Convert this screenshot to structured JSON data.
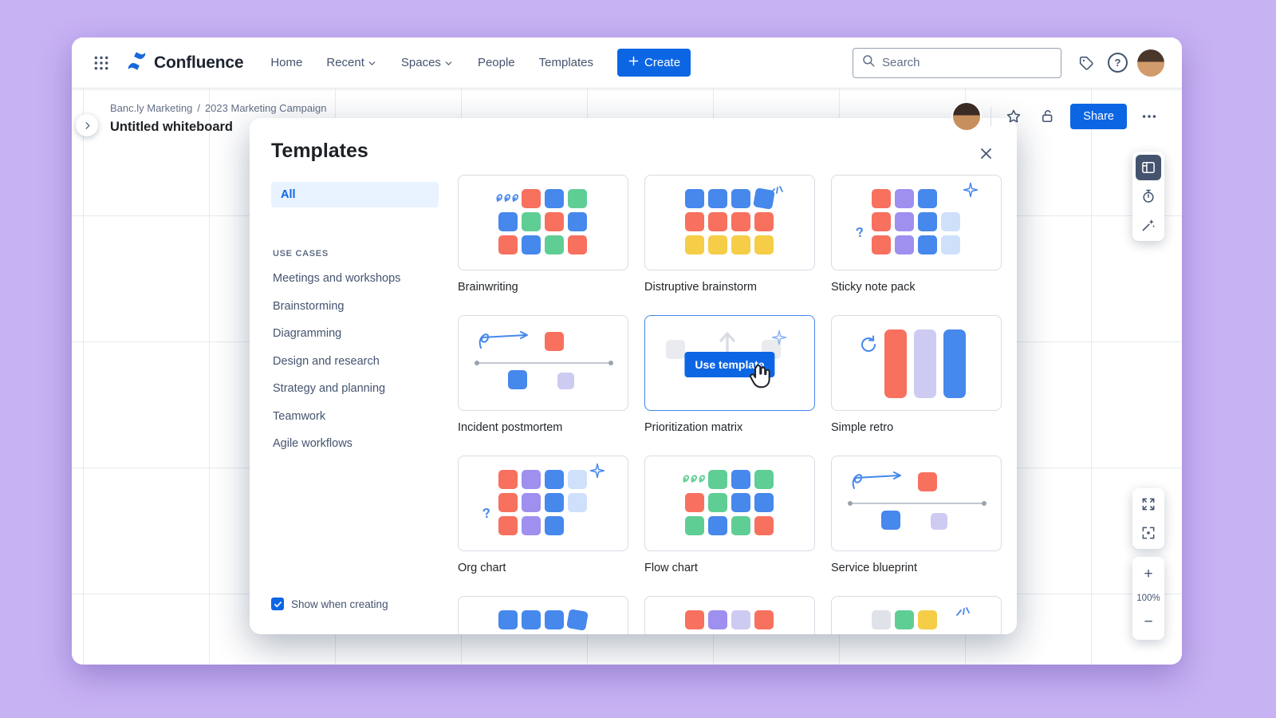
{
  "palette": {
    "coral": "#F8705E",
    "blue": "#4688EC",
    "green": "#5FCE94",
    "yellow": "#F5CD47",
    "purple": "#9F8FEF",
    "lightblue": "#CFE0FB",
    "lavender": "#CDCBF1",
    "gray": "#DFE2E8",
    "ghost": "#E9EBEF"
  },
  "nav": {
    "brand": "Confluence",
    "items": [
      {
        "label": "Home"
      },
      {
        "label": "Recent",
        "chevron": true
      },
      {
        "label": "Spaces",
        "chevron": true
      },
      {
        "label": "People"
      },
      {
        "label": "Templates"
      }
    ],
    "create_label": "Create",
    "search_placeholder": "Search"
  },
  "glyphs": {
    "help": "?"
  },
  "board": {
    "breadcrumb": {
      "parts": [
        "Banc.ly Marketing",
        "2023 Marketing Campaign"
      ],
      "separator": "/"
    },
    "title": "Untitled whiteboard",
    "share_label": "Share"
  },
  "zoom": {
    "in": "+",
    "out": "−",
    "level": "100%"
  },
  "modal": {
    "title": "Templates",
    "sidebar": {
      "all_label": "All",
      "section_label": "USE CASES",
      "items": [
        "Meetings and workshops",
        "Brainstorming",
        "Diagramming",
        "Design and research",
        "Strategy and planning",
        "Teamwork",
        "Agile workflows"
      ]
    },
    "show_when_creating_label": "Show when creating",
    "templates": [
      {
        "name": "Brainwriting",
        "thumb": {
          "kind": "grid",
          "cells": [
            [
              "scribble:blue",
              "coral",
              "blue",
              "green"
            ],
            [
              "blue",
              "green",
              "coral",
              "blue"
            ],
            [
              "coral",
              "blue",
              "green",
              "coral"
            ]
          ]
        }
      },
      {
        "name": "Distruptive brainstorm",
        "thumb": {
          "kind": "grid",
          "cells": [
            [
              "blue",
              "blue",
              "blue",
              "tilt:blue"
            ],
            [
              "coral",
              "coral",
              "coral",
              "coral"
            ],
            [
              "yellow",
              "yellow",
              "yellow",
              "yellow"
            ]
          ],
          "decor": [
            {
              "type": "burst",
              "pos": "tr"
            }
          ]
        }
      },
      {
        "name": "Sticky note pack",
        "thumb": {
          "kind": "grid",
          "cells": [
            [
              "coral",
              "purple",
              "blue",
              "none"
            ],
            [
              "coral",
              "purple",
              "blue",
              "lightblue"
            ],
            [
              "coral",
              "purple",
              "blue",
              "lightblue"
            ]
          ],
          "decor": [
            {
              "type": "sparkle",
              "pos": "tr"
            },
            {
              "type": "question",
              "pos": "bl"
            }
          ]
        }
      },
      {
        "name": "Incident postmortem",
        "thumb": {
          "kind": "timeline"
        }
      },
      {
        "name": "Prioritization matrix",
        "selected": true,
        "button": "Use template",
        "thumb": {
          "kind": "hover"
        }
      },
      {
        "name": "Simple retro",
        "thumb": {
          "kind": "retro",
          "bars": [
            "coral",
            "lavender",
            "blue"
          ]
        }
      },
      {
        "name": "Org chart",
        "thumb": {
          "kind": "grid",
          "cells": [
            [
              "coral",
              "purple",
              "blue",
              "lightblue"
            ],
            [
              "coral",
              "purple",
              "blue",
              "lightblue"
            ],
            [
              "coral",
              "purple",
              "blue",
              "none"
            ]
          ],
          "decor": [
            {
              "type": "sparkle",
              "pos": "tr"
            },
            {
              "type": "question",
              "pos": "bl"
            }
          ]
        }
      },
      {
        "name": "Flow chart",
        "thumb": {
          "kind": "grid",
          "cells": [
            [
              "scribble:green",
              "green",
              "blue",
              "green"
            ],
            [
              "coral",
              "green",
              "blue",
              "blue"
            ],
            [
              "green",
              "blue",
              "green",
              "coral"
            ]
          ]
        }
      },
      {
        "name": "Service blueprint",
        "thumb": {
          "kind": "timeline"
        }
      },
      {
        "name": "",
        "thumb": {
          "kind": "grid",
          "cells": [
            [
              "blue",
              "blue",
              "blue",
              "tilt:blue"
            ]
          ]
        }
      },
      {
        "name": "",
        "thumb": {
          "kind": "grid",
          "cells": [
            [
              "coral",
              "purple",
              "lavender",
              "coral"
            ]
          ]
        }
      },
      {
        "name": "",
        "thumb": {
          "kind": "grid",
          "cells": [
            [
              "gray",
              "green",
              "yellow",
              "none"
            ]
          ],
          "decor": [
            {
              "type": "burst",
              "pos": "tr"
            }
          ]
        }
      }
    ]
  }
}
